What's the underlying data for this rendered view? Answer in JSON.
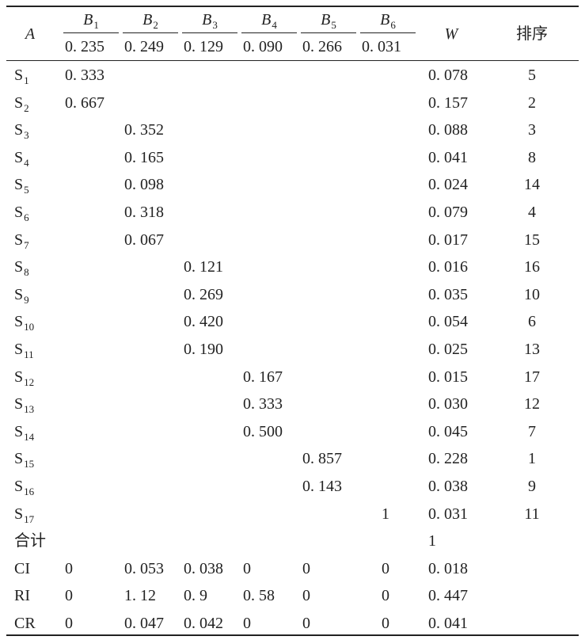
{
  "header": {
    "a": "A",
    "criteria": [
      {
        "base": "B",
        "sub": "1",
        "weight": "0. 235"
      },
      {
        "base": "B",
        "sub": "2",
        "weight": "0. 249"
      },
      {
        "base": "B",
        "sub": "3",
        "weight": "0. 129"
      },
      {
        "base": "B",
        "sub": "4",
        "weight": "0. 090"
      },
      {
        "base": "B",
        "sub": "5",
        "weight": "0. 266"
      },
      {
        "base": "B",
        "sub": "6",
        "weight": "0. 031"
      }
    ],
    "w": "W",
    "rank": "排序"
  },
  "rows": [
    {
      "label": {
        "base": "S",
        "sub": "1"
      },
      "cells": [
        "0. 333",
        null,
        null,
        null,
        null,
        null
      ],
      "w": "0. 078",
      "rank": "5"
    },
    {
      "label": {
        "base": "S",
        "sub": "2"
      },
      "cells": [
        "0. 667",
        null,
        null,
        null,
        null,
        null
      ],
      "w": "0. 157",
      "rank": "2"
    },
    {
      "label": {
        "base": "S",
        "sub": "3"
      },
      "cells": [
        null,
        "0. 352",
        null,
        null,
        null,
        null
      ],
      "w": "0. 088",
      "rank": "3"
    },
    {
      "label": {
        "base": "S",
        "sub": "4"
      },
      "cells": [
        null,
        "0. 165",
        null,
        null,
        null,
        null
      ],
      "w": "0. 041",
      "rank": "8"
    },
    {
      "label": {
        "base": "S",
        "sub": "5"
      },
      "cells": [
        null,
        "0. 098",
        null,
        null,
        null,
        null
      ],
      "w": "0. 024",
      "rank": "14"
    },
    {
      "label": {
        "base": "S",
        "sub": "6"
      },
      "cells": [
        null,
        "0. 318",
        null,
        null,
        null,
        null
      ],
      "w": "0. 079",
      "rank": "4"
    },
    {
      "label": {
        "base": "S",
        "sub": "7"
      },
      "cells": [
        null,
        "0. 067",
        null,
        null,
        null,
        null
      ],
      "w": "0. 017",
      "rank": "15"
    },
    {
      "label": {
        "base": "S",
        "sub": "8"
      },
      "cells": [
        null,
        null,
        "0. 121",
        null,
        null,
        null
      ],
      "w": "0. 016",
      "rank": "16"
    },
    {
      "label": {
        "base": "S",
        "sub": "9"
      },
      "cells": [
        null,
        null,
        "0. 269",
        null,
        null,
        null
      ],
      "w": "0. 035",
      "rank": "10"
    },
    {
      "label": {
        "base": "S",
        "sub": "10"
      },
      "cells": [
        null,
        null,
        "0. 420",
        null,
        null,
        null
      ],
      "w": "0. 054",
      "rank": "6"
    },
    {
      "label": {
        "base": "S",
        "sub": "11"
      },
      "cells": [
        null,
        null,
        "0. 190",
        null,
        null,
        null
      ],
      "w": "0. 025",
      "rank": "13"
    },
    {
      "label": {
        "base": "S",
        "sub": "12"
      },
      "cells": [
        null,
        null,
        null,
        "0. 167",
        null,
        null
      ],
      "w": "0. 015",
      "rank": "17"
    },
    {
      "label": {
        "base": "S",
        "sub": "13"
      },
      "cells": [
        null,
        null,
        null,
        "0. 333",
        null,
        null
      ],
      "w": "0. 030",
      "rank": "12"
    },
    {
      "label": {
        "base": "S",
        "sub": "14"
      },
      "cells": [
        null,
        null,
        null,
        "0. 500",
        null,
        null
      ],
      "w": "0. 045",
      "rank": "7"
    },
    {
      "label": {
        "base": "S",
        "sub": "15"
      },
      "cells": [
        null,
        null,
        null,
        null,
        "0. 857",
        null
      ],
      "w": "0. 228",
      "rank": "1"
    },
    {
      "label": {
        "base": "S",
        "sub": "16"
      },
      "cells": [
        null,
        null,
        null,
        null,
        "0. 143",
        null
      ],
      "w": "0. 038",
      "rank": "9"
    },
    {
      "label": {
        "base": "S",
        "sub": "17"
      },
      "cells": [
        null,
        null,
        null,
        null,
        null,
        "1"
      ],
      "w": "0. 031",
      "rank": "11"
    },
    {
      "label": "合计",
      "w": "1"
    },
    {
      "label": "CI",
      "cells": [
        "0",
        "0. 053",
        "0. 038",
        "0",
        "0",
        "0"
      ],
      "w": "0. 018"
    },
    {
      "label": "RI",
      "cells": [
        "0",
        "1. 12",
        "0. 9",
        "0. 58",
        "0",
        "0"
      ],
      "w": "0. 447"
    },
    {
      "label": "CR",
      "cells": [
        "0",
        "0. 047",
        "0. 042",
        "0",
        "0",
        "0"
      ],
      "w": "0. 041"
    }
  ]
}
